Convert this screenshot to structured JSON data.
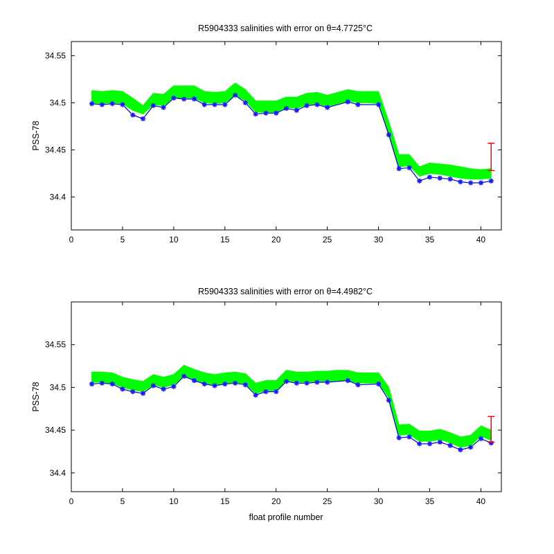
{
  "colors": {
    "band": "#00ff00",
    "line": "#0000cc",
    "marker": "#1a1aff",
    "errorbar": "#ff0000",
    "axes": "#000000",
    "background": "#ffffff"
  },
  "chart_data": [
    {
      "type": "line",
      "title": "R5904333 salinities with error on θ=4.7725°C",
      "xlabel": "",
      "ylabel": "PSS-78",
      "xlim": [
        0,
        42
      ],
      "ylim": [
        34.365,
        34.565
      ],
      "xticks": [
        0,
        5,
        10,
        15,
        20,
        25,
        30,
        35,
        40
      ],
      "xtick_labels": [
        "0",
        "5",
        "10",
        "15",
        "20",
        "25",
        "30",
        "35",
        "40"
      ],
      "yticks": [
        34.4,
        34.45,
        34.5,
        34.55
      ],
      "ytick_labels": [
        "34.4",
        "34.45",
        "34.5",
        "34.55"
      ],
      "grid": false,
      "series": [
        {
          "role": "salinity_line",
          "x": [
            2,
            3,
            4,
            5,
            6,
            7,
            8,
            9,
            10,
            11,
            12,
            13,
            14,
            15,
            16,
            17,
            18,
            19,
            20,
            21,
            22,
            23,
            24,
            25,
            27,
            28,
            30,
            31,
            32,
            33,
            34,
            35,
            36,
            37,
            38,
            39,
            40,
            41
          ],
          "y": [
            34.499,
            34.498,
            34.499,
            34.498,
            34.487,
            34.483,
            34.497,
            34.495,
            34.505,
            34.504,
            34.504,
            34.498,
            34.498,
            34.498,
            34.508,
            34.5,
            34.488,
            34.489,
            34.489,
            34.494,
            34.492,
            34.497,
            34.498,
            34.495,
            34.501,
            34.498,
            34.498,
            34.466,
            34.43,
            34.431,
            34.417,
            34.421,
            34.42,
            34.419,
            34.416,
            34.415,
            34.415,
            34.417
          ]
        },
        {
          "role": "error_band",
          "x": [
            2,
            3,
            4,
            5,
            6,
            7,
            8,
            9,
            10,
            11,
            12,
            13,
            14,
            15,
            16,
            17,
            18,
            19,
            20,
            21,
            22,
            23,
            24,
            25,
            27,
            28,
            29,
            30,
            31,
            32,
            33,
            34,
            35,
            36,
            37,
            38,
            39,
            40,
            41
          ],
          "lower": [
            34.5,
            34.499,
            34.5,
            34.499,
            34.492,
            34.488,
            34.498,
            34.497,
            34.505,
            34.505,
            34.505,
            34.5,
            34.499,
            34.5,
            34.508,
            34.502,
            34.49,
            34.49,
            34.49,
            34.495,
            34.494,
            34.498,
            34.499,
            34.496,
            34.502,
            34.5,
            34.5,
            34.499,
            34.468,
            34.432,
            34.433,
            34.422,
            34.425,
            34.424,
            34.422,
            34.42,
            34.419,
            34.419,
            34.42
          ],
          "upper": [
            34.513,
            34.512,
            34.513,
            34.512,
            34.505,
            34.497,
            34.51,
            34.509,
            34.518,
            34.518,
            34.518,
            34.512,
            34.511,
            34.512,
            34.521,
            34.514,
            34.502,
            34.502,
            34.502,
            34.506,
            34.506,
            34.51,
            34.511,
            34.508,
            34.514,
            34.512,
            34.512,
            34.512,
            34.48,
            34.445,
            34.445,
            34.432,
            34.436,
            34.435,
            34.434,
            34.432,
            34.43,
            34.429,
            34.43
          ]
        }
      ],
      "error_bar": {
        "x": 41,
        "y_low": 34.428,
        "y_high": 34.457
      }
    },
    {
      "type": "line",
      "title": "R5904333 salinities with error on θ=4.4982°C",
      "xlabel": "float profile number",
      "ylabel": "PSS-78",
      "xlim": [
        0,
        42
      ],
      "ylim": [
        34.378,
        34.6
      ],
      "xticks": [
        0,
        5,
        10,
        15,
        20,
        25,
        30,
        35,
        40
      ],
      "xtick_labels": [
        "0",
        "5",
        "10",
        "15",
        "20",
        "25",
        "30",
        "35",
        "40"
      ],
      "yticks": [
        34.4,
        34.45,
        34.5,
        34.55
      ],
      "ytick_labels": [
        "34.4",
        "34.45",
        "34.5",
        "34.55"
      ],
      "grid": false,
      "series": [
        {
          "role": "salinity_line",
          "x": [
            2,
            3,
            4,
            5,
            6,
            7,
            8,
            9,
            10,
            11,
            12,
            13,
            14,
            15,
            16,
            17,
            18,
            19,
            20,
            21,
            22,
            23,
            24,
            25,
            27,
            28,
            30,
            31,
            32,
            33,
            34,
            35,
            36,
            37,
            38,
            39,
            40,
            41
          ],
          "y": [
            34.504,
            34.505,
            34.504,
            34.498,
            34.495,
            34.493,
            34.502,
            34.498,
            34.501,
            34.513,
            34.508,
            34.504,
            34.502,
            34.504,
            34.505,
            34.503,
            34.491,
            34.495,
            34.495,
            34.507,
            34.505,
            34.505,
            34.506,
            34.506,
            34.508,
            34.503,
            34.504,
            34.485,
            34.441,
            34.442,
            34.434,
            34.434,
            34.436,
            34.432,
            34.427,
            34.43,
            34.44,
            34.435
          ]
        },
        {
          "role": "error_band",
          "x": [
            2,
            3,
            4,
            5,
            6,
            7,
            8,
            9,
            10,
            11,
            12,
            13,
            14,
            15,
            16,
            17,
            18,
            19,
            20,
            21,
            22,
            23,
            24,
            25,
            26,
            27,
            28,
            29,
            30,
            31,
            32,
            33,
            34,
            35,
            36,
            37,
            38,
            39,
            40,
            41
          ],
          "lower": [
            34.506,
            34.506,
            34.505,
            34.5,
            34.497,
            34.495,
            34.503,
            34.5,
            34.503,
            34.513,
            34.509,
            34.505,
            34.503,
            34.505,
            34.506,
            34.504,
            34.493,
            34.496,
            34.496,
            34.508,
            34.506,
            34.506,
            34.507,
            34.507,
            34.508,
            34.508,
            34.505,
            34.505,
            34.505,
            34.488,
            34.444,
            34.445,
            34.437,
            34.437,
            34.439,
            34.435,
            34.43,
            34.432,
            34.443,
            34.438
          ],
          "upper": [
            34.518,
            34.518,
            34.517,
            34.512,
            34.509,
            34.507,
            34.515,
            34.512,
            34.515,
            34.526,
            34.521,
            34.517,
            34.515,
            34.517,
            34.518,
            34.516,
            34.505,
            34.508,
            34.508,
            34.52,
            34.518,
            34.518,
            34.519,
            34.519,
            34.52,
            34.52,
            34.517,
            34.517,
            34.517,
            34.5,
            34.456,
            34.457,
            34.449,
            34.449,
            34.451,
            34.447,
            34.442,
            34.444,
            34.455,
            34.45
          ]
        }
      ],
      "error_bar": {
        "x": 41,
        "y_low": 34.436,
        "y_high": 34.466
      }
    }
  ]
}
